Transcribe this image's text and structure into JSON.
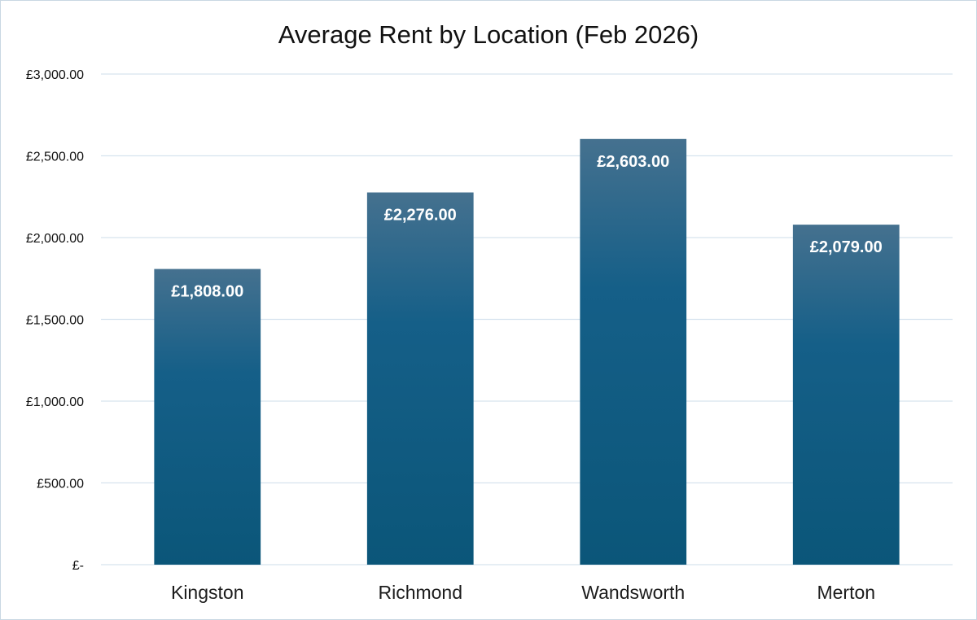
{
  "chart_data": {
    "type": "bar",
    "title": "Average Rent by Location (Feb 2026)",
    "xlabel": "",
    "ylabel": "",
    "categories": [
      "Kingston",
      "Richmond",
      "Wandsworth",
      "Merton"
    ],
    "values": [
      1808,
      2276,
      2603,
      2079
    ],
    "data_labels": [
      "£1,808.00",
      "£2,276.00",
      "£2,603.00",
      "£2,079.00"
    ],
    "ylim": [
      0,
      3000
    ],
    "yticks": [
      0,
      500,
      1000,
      1500,
      2000,
      2500,
      3000
    ],
    "ytick_labels": [
      "£-",
      "£500.00",
      "£1,000.00",
      "£1,500.00",
      "£2,000.00",
      "£2,500.00",
      "£3,000.00"
    ],
    "grid": true,
    "legend": "none",
    "colors": {
      "bar_top": "#45718f",
      "bar_mid": "#155f88",
      "bar_bottom": "#0b5679",
      "grid": "#d6e3ee",
      "frame": "#c9d7e3"
    }
  }
}
